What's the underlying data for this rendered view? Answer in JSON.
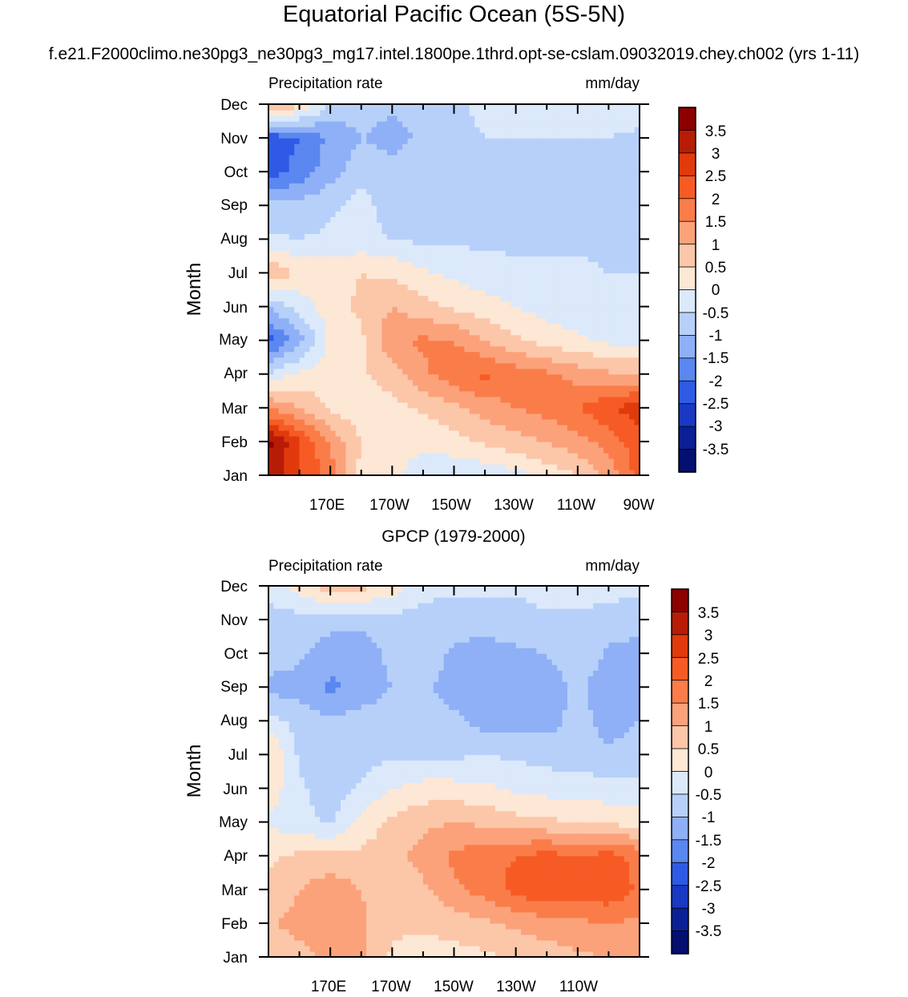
{
  "title": "Equatorial Pacific Ocean (5S-5N)",
  "subtitle": "f.e21.F2000climo.ne30pg3_ne30pg3_mg17.intel.1800pe.1thrd.opt-se-cslam.09032019.chey.ch002 (yrs 1-11)",
  "colorbar": {
    "levels": [
      3.5,
      3,
      2.5,
      2,
      1.5,
      1,
      0.5,
      0,
      -0.5,
      -1,
      -1.5,
      -2,
      -2.5,
      -3,
      -3.5
    ],
    "level_labels": [
      "3.5",
      "3",
      "2.5",
      "2",
      "1.5",
      "1",
      "0.5",
      "0",
      "-0.5",
      "-1",
      "-1.5",
      "-2",
      "-2.5",
      "-3",
      "-3.5"
    ],
    "colors": [
      "#8c0000",
      "#b81c07",
      "#e03a0d",
      "#f75b25",
      "#fa7d49",
      "#fba27b",
      "#fcc6a8",
      "#fde7d5",
      "#dbe9fb",
      "#b7d0fa",
      "#8fb0f6",
      "#5a87f0",
      "#2e5ae6",
      "#1939c4",
      "#0b2096",
      "#040f70"
    ]
  },
  "chart_data": [
    {
      "type": "heatmap",
      "title": "",
      "left_label": "Precipitation rate",
      "right_label": "mm/day",
      "ylabel": "Month",
      "xlabel": "",
      "x_ticks": [
        "170E",
        "170W",
        "150W",
        "130W",
        "110W",
        "90W"
      ],
      "y_ticks": [
        "Jan",
        "Feb",
        "Mar",
        "Apr",
        "May",
        "Jun",
        "Jul",
        "Aug",
        "Sep",
        "Oct",
        "Nov",
        "Dec"
      ],
      "x_range_deg_east": [
        150,
        270
      ],
      "y_range_month": [
        1,
        12
      ],
      "grid_x": [
        150,
        160,
        170,
        180,
        190,
        200,
        210,
        220,
        230,
        240,
        250,
        260,
        270
      ],
      "grid_y": [
        1,
        2,
        3,
        4,
        5,
        6,
        7,
        8,
        9,
        10,
        11,
        12
      ],
      "values": [
        [
          3.5,
          2.5,
          1.8,
          0.3,
          0.1,
          -0.3,
          -0.4,
          -0.4,
          -0.2,
          0.2,
          0.5,
          1.2,
          2.2
        ],
        [
          3.6,
          2.6,
          1.4,
          0.5,
          0.3,
          0.1,
          0.3,
          0.6,
          0.8,
          1.0,
          1.3,
          1.7,
          2.3
        ],
        [
          1.5,
          1.0,
          0.4,
          0.2,
          0.3,
          0.6,
          0.9,
          1.2,
          1.5,
          1.7,
          2.0,
          2.4,
          2.8
        ],
        [
          -0.4,
          0.1,
          0.3,
          0.4,
          0.8,
          1.4,
          1.8,
          2.1,
          1.8,
          1.6,
          1.3,
          1.1,
          1.0
        ],
        [
          -2.2,
          -1.2,
          0.1,
          0.4,
          1.4,
          1.6,
          1.5,
          1.0,
          0.6,
          0.3,
          0.1,
          -0.1,
          -0.2
        ],
        [
          -1.0,
          -0.3,
          0.3,
          0.6,
          1.0,
          0.7,
          0.4,
          0.2,
          0.0,
          -0.2,
          -0.3,
          -0.4,
          -0.4
        ],
        [
          1.0,
          0.4,
          0.3,
          0.5,
          0.4,
          0.1,
          -0.1,
          -0.3,
          -0.4,
          -0.4,
          -0.4,
          -0.5,
          -0.5
        ],
        [
          -0.4,
          -0.5,
          -0.4,
          -0.3,
          -0.5,
          -0.6,
          -0.6,
          -0.6,
          -0.6,
          -0.6,
          -0.6,
          -0.6,
          -0.6
        ],
        [
          -0.8,
          -0.8,
          -0.6,
          -0.3,
          -0.8,
          -0.7,
          -0.7,
          -0.6,
          -0.6,
          -0.6,
          -0.6,
          -0.6,
          -0.7
        ],
        [
          -2.3,
          -1.8,
          -1.2,
          -0.7,
          -0.8,
          -0.6,
          -0.6,
          -0.6,
          -0.6,
          -0.6,
          -0.6,
          -0.6,
          -0.9
        ],
        [
          -2.4,
          -2.0,
          -1.4,
          -1.0,
          -1.2,
          -0.9,
          -0.6,
          -0.5,
          -0.5,
          -0.5,
          -0.5,
          -0.5,
          -0.6
        ],
        [
          1.2,
          0.6,
          -0.6,
          -0.8,
          -0.9,
          -0.8,
          -0.6,
          -0.4,
          -0.3,
          -0.3,
          -0.2,
          -0.2,
          -0.3
        ]
      ]
    },
    {
      "type": "heatmap",
      "title": "GPCP (1979-2000)",
      "left_label": "Precipitation rate",
      "right_label": "mm/day",
      "ylabel": "Month",
      "xlabel": "",
      "x_ticks": [
        "170E",
        "170W",
        "150W",
        "130W",
        "110W"
      ],
      "y_ticks": [
        "Jan",
        "Feb",
        "Mar",
        "Apr",
        "May",
        "Jun",
        "Jul",
        "Aug",
        "Sep",
        "Oct",
        "Nov",
        "Dec"
      ],
      "x_range_deg_east": [
        150,
        270
      ],
      "y_range_month": [
        1,
        12
      ],
      "grid_x": [
        150,
        160,
        170,
        180,
        190,
        200,
        210,
        220,
        230,
        240,
        250,
        260,
        270
      ],
      "grid_y": [
        1,
        2,
        3,
        4,
        5,
        6,
        7,
        8,
        9,
        10,
        11,
        12
      ],
      "values": [
        [
          0.7,
          0.8,
          1.2,
          1.1,
          0.4,
          0.3,
          0.3,
          0.4,
          0.6,
          0.7,
          0.9,
          1.0,
          1.0
        ],
        [
          0.9,
          1.2,
          1.3,
          1.1,
          0.6,
          0.6,
          0.7,
          0.9,
          1.1,
          1.3,
          1.4,
          1.5,
          1.4
        ],
        [
          0.6,
          1.0,
          1.3,
          1.0,
          0.6,
          0.9,
          1.4,
          1.7,
          2.2,
          2.4,
          2.2,
          2.4,
          1.9
        ],
        [
          0.4,
          0.6,
          0.7,
          0.6,
          0.8,
          1.2,
          1.6,
          1.8,
          2.0,
          2.2,
          2.0,
          2.2,
          1.8
        ],
        [
          -0.1,
          -0.3,
          -0.6,
          0.2,
          0.6,
          0.9,
          1.0,
          0.9,
          0.7,
          0.6,
          0.5,
          0.4,
          0.3
        ],
        [
          0.3,
          -0.4,
          -0.8,
          -0.4,
          0.0,
          0.2,
          0.2,
          0.1,
          -0.1,
          -0.2,
          -0.2,
          -0.3,
          -0.4
        ],
        [
          0.6,
          -0.6,
          -0.8,
          -0.7,
          -0.6,
          -0.6,
          -0.6,
          -0.5,
          -0.6,
          -0.7,
          -0.8,
          -0.9,
          -0.8
        ],
        [
          -0.3,
          -0.7,
          -0.9,
          -0.8,
          -0.7,
          -0.7,
          -0.9,
          -1.2,
          -1.2,
          -1.2,
          -0.8,
          -1.2,
          -1.0
        ],
        [
          -1.2,
          -1.2,
          -1.6,
          -1.3,
          -1.0,
          -0.9,
          -1.2,
          -1.3,
          -1.3,
          -1.3,
          -0.9,
          -1.3,
          -1.2
        ],
        [
          -0.7,
          -0.9,
          -1.3,
          -1.4,
          -0.8,
          -0.7,
          -1.1,
          -1.2,
          -1.1,
          -1.0,
          -0.6,
          -1.1,
          -1.2
        ],
        [
          -0.7,
          -0.7,
          -0.8,
          -0.8,
          -0.7,
          -0.7,
          -0.8,
          -0.8,
          -0.7,
          -0.6,
          -0.6,
          -0.7,
          -0.8
        ],
        [
          -0.3,
          0.2,
          0.8,
          0.7,
          0.3,
          -0.3,
          -0.4,
          -0.4,
          -0.4,
          -0.3,
          -0.3,
          -0.3,
          -0.4
        ]
      ]
    }
  ]
}
